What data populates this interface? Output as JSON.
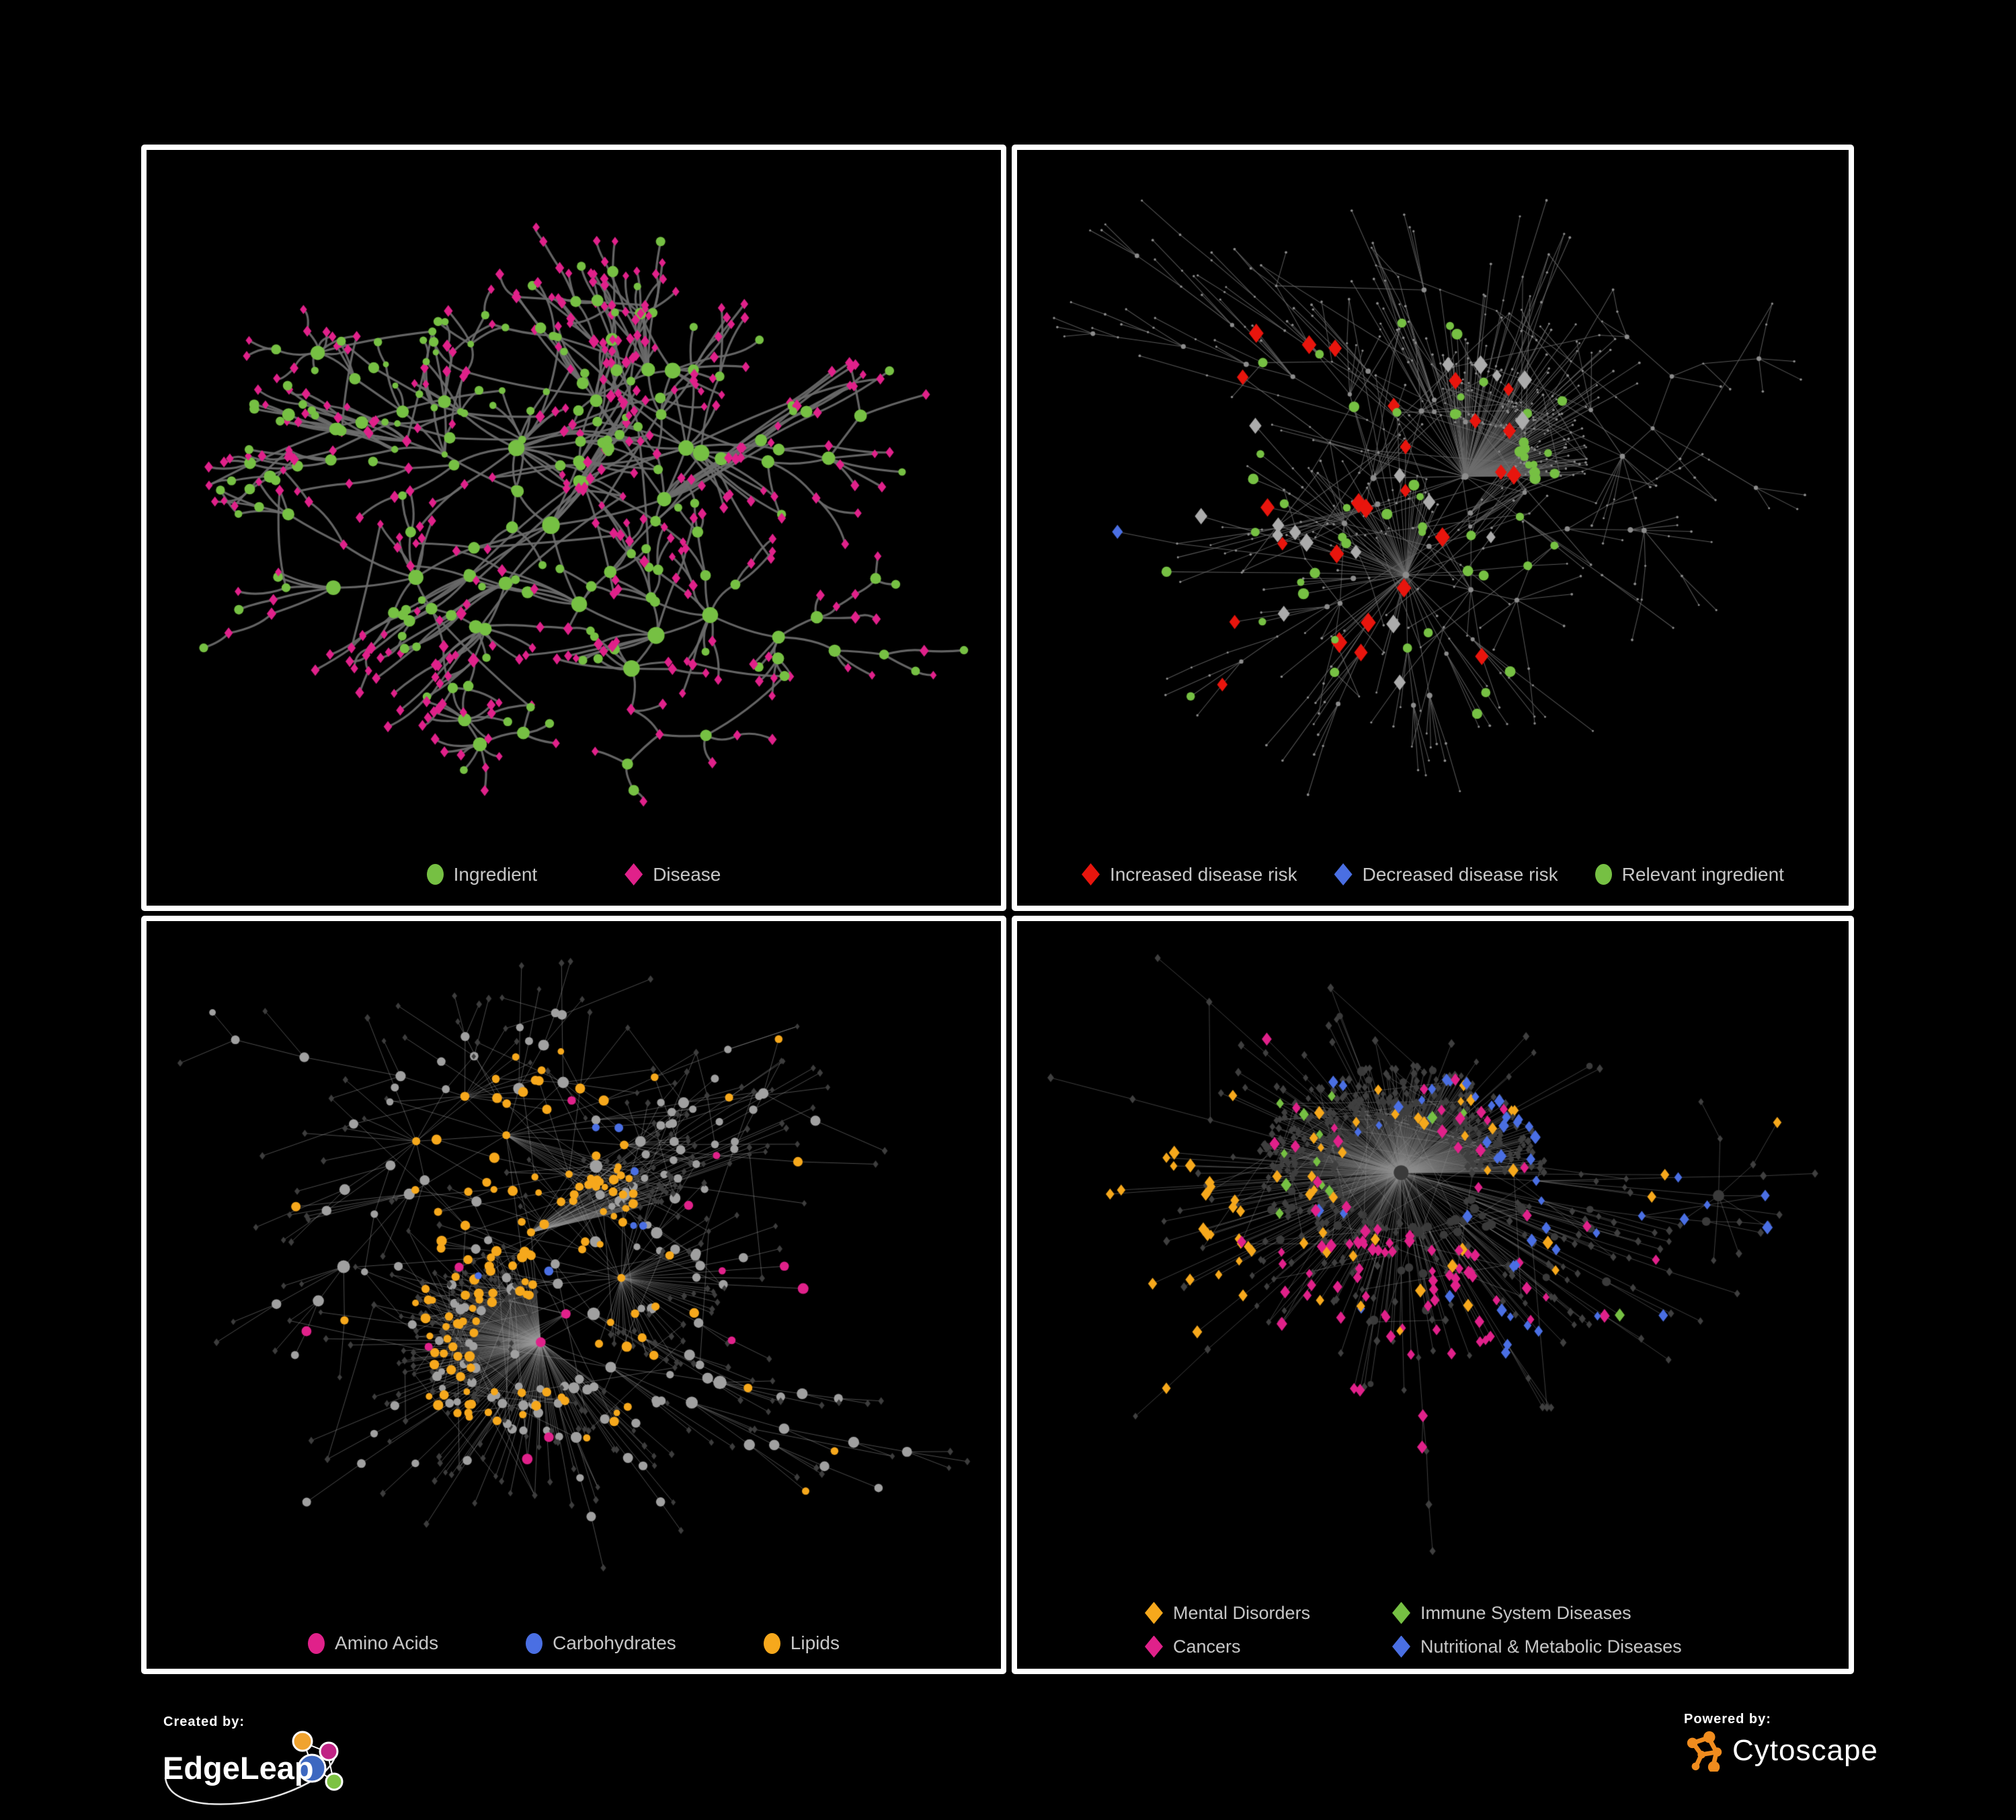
{
  "page": {
    "background": "#000000",
    "panel_border": "#ffffff",
    "legend_text_color": "#c7c7c7"
  },
  "panels": [
    {
      "name": "ingredient-disease-network",
      "legend": [
        {
          "label": "Ingredient",
          "shape": "circle",
          "color": "#76C043"
        },
        {
          "label": "Disease",
          "shape": "diamond",
          "color": "#E0218A"
        }
      ],
      "colors": {
        "edge": "#6C6C6C"
      },
      "render": {
        "seed": 7,
        "nodes": 560,
        "hub_bias": 0.78,
        "pref_power": 1.15,
        "step": 230,
        "decay": 0.85,
        "extra_edges": 45,
        "extra_dist": 230,
        "curved": true,
        "edge_width": 3.2,
        "edge_alpha": 0.92,
        "fit": [
          85,
          115,
          55,
          155
        ],
        "hub_deg": 2,
        "base0_prob": 0.22,
        "hub0_prob": 0.8,
        "base": [
          {
            "shape": "circle",
            "color": "#76C043",
            "r0": 4.2,
            "rk": 2.3,
            "rmax": 16
          },
          {
            "shape": "diamond",
            "color": "#E0218A",
            "r0": 4.6,
            "rk": 1.5,
            "rmax": 11
          }
        ],
        "groups": [
          {
            "shape": "circle",
            "color": "#76C043",
            "prob": 0.5,
            "region": [
              0.27,
              0.2,
              0.48,
              0.42
            ],
            "r": 5.2
          }
        ]
      }
    },
    {
      "name": "disease-risk-network",
      "legend": [
        {
          "label": "Increased disease risk",
          "shape": "diamond",
          "color": "#E8150D"
        },
        {
          "label": "Decreased disease risk",
          "shape": "diamond",
          "color": "#4A6FE3"
        },
        {
          "label": "Relevant ingredient",
          "shape": "circle",
          "color": "#76C043"
        }
      ],
      "colors": {
        "edge": "#6E6E6E"
      },
      "render": {
        "seed": 13,
        "nodes": 640,
        "hub_bias": 0.8,
        "pref_power": 1.35,
        "step": 230,
        "decay": 0.85,
        "extra_edges": 70,
        "extra_dist": 290,
        "curved": false,
        "edge_width": 1.05,
        "edge_alpha": 0.8,
        "fit": [
          55,
          75,
          65,
          165
        ],
        "hub_deg": 3,
        "base0_prob": 0,
        "hub0_prob": 1,
        "base": [
          {
            "shape": "circle",
            "color": "#8C8C8C",
            "r0": 2.4,
            "rk": 0.55,
            "rmax": 5
          },
          {
            "shape": "circle",
            "color": "#8C8C8C",
            "r0": 1.7,
            "rk": 0,
            "rmax": 3
          }
        ],
        "groups": [
          {
            "shape": "diamond",
            "color": "#E8150D",
            "prob": 0.1,
            "region": [
              0.07,
              0.24,
              0.6,
              0.73
            ],
            "r": 10
          },
          {
            "shape": "diamond",
            "color": "#4A6FE3",
            "prob": 0.3,
            "region": [
              0.06,
              0.3,
              0.17,
              0.63
            ],
            "r": 9
          },
          {
            "shape": "diamond",
            "color": "#4A6FE3",
            "prob": 0.75,
            "region": [
              0.83,
              0.2,
              0.9,
              0.28
            ],
            "r": 9
          },
          {
            "shape": "diamond",
            "color": "#ABABAB",
            "prob": 0.05,
            "region": [
              0.07,
              0.25,
              0.62,
              0.75
            ],
            "r": 9
          },
          {
            "shape": "circle",
            "color": "#76C043",
            "prob": 0.13,
            "region": [
              0.08,
              0.22,
              0.66,
              0.75
            ],
            "r": 6.5
          }
        ]
      }
    },
    {
      "name": "nutrient-class-network",
      "legend": [
        {
          "label": "Amino Acids",
          "shape": "circle",
          "color": "#E0218A"
        },
        {
          "label": "Carbohydrates",
          "shape": "circle",
          "color": "#4A6FE3"
        },
        {
          "label": "Lipids",
          "shape": "circle",
          "color": "#F6A81C"
        }
      ],
      "colors": {
        "edge": "#9A9A9A"
      },
      "render": {
        "seed": 21,
        "nodes": 700,
        "hub_bias": 0.8,
        "pref_power": 1.6,
        "step": 230,
        "decay": 0.85,
        "extra_edges": 90,
        "extra_dist": 280,
        "curved": false,
        "edge_width": 1.0,
        "edge_alpha": 0.5,
        "fit": [
          50,
          60,
          50,
          150
        ],
        "hub_deg": 1,
        "base0_prob": 0.03,
        "hub0_prob": 1,
        "base": [
          {
            "shape": "circle",
            "color": "#A0A0A0",
            "r0": 3.6,
            "rk": 2.1,
            "rmax": 13
          },
          {
            "shape": "diamond",
            "color": "#3D3D3D",
            "r0": 4.2,
            "rk": 0,
            "rmax": 4.6
          }
        ],
        "groups": [
          {
            "shape": "circle",
            "color": "#F6A81C",
            "prob": 0.5,
            "region": [
              0.33,
              0.17,
              0.57,
              0.44
            ],
            "r": 6
          },
          {
            "shape": "circle",
            "color": "#F6A81C",
            "prob": 0.3,
            "region": [
              0.3,
              0.44,
              0.6,
              0.68
            ],
            "r": 6
          },
          {
            "shape": "circle",
            "color": "#F6A81C",
            "prob": 0.035,
            "region": [
              0.03,
              0.03,
              0.97,
              0.97
            ],
            "r": 6
          },
          {
            "shape": "circle",
            "color": "#4A6FE3",
            "prob": 0.09,
            "region": [
              0.36,
              0.18,
              0.62,
              0.5
            ],
            "r": 6
          },
          {
            "shape": "circle",
            "color": "#E0218A",
            "prob": 0.032,
            "region": [
              0.02,
              0.02,
              0.98,
              0.98
            ],
            "r": 6.5
          }
        ]
      }
    },
    {
      "name": "disease-category-network",
      "legend": [
        {
          "label": "Mental Disorders",
          "shape": "diamond",
          "color": "#F6A81C"
        },
        {
          "label": "Immune System Diseases",
          "shape": "diamond",
          "color": "#76C043"
        },
        {
          "label": "Cancers",
          "shape": "diamond",
          "color": "#E0218A"
        },
        {
          "label": "Nutritional & Metabolic Diseases",
          "shape": "diamond",
          "color": "#4A6FE3"
        }
      ],
      "colors": {
        "edge": "#8F8F8F"
      },
      "render": {
        "seed": 29,
        "nodes": 760,
        "hub_bias": 0.8,
        "pref_power": 1.6,
        "step": 230,
        "decay": 0.85,
        "extra_edges": 90,
        "extra_dist": 280,
        "curved": false,
        "edge_width": 1.0,
        "edge_alpha": 0.45,
        "fit": [
          50,
          55,
          50,
          175
        ],
        "hub_deg": 2,
        "base0_prob": 0.04,
        "hub0_prob": 1,
        "base": [
          {
            "shape": "circle",
            "color": "#3A3A3A",
            "r0": 3.2,
            "rk": 1.7,
            "rmax": 11
          },
          {
            "shape": "diamond",
            "color": "#3F3F3F",
            "r0": 4.8,
            "rk": 0,
            "rmax": 5.4
          }
        ],
        "groups": [
          {
            "shape": "diamond",
            "color": "#F6A81C",
            "prob": 0.6,
            "region": [
              0.03,
              0.26,
              0.29,
              0.72
            ],
            "r": 6.5
          },
          {
            "shape": "diamond",
            "color": "#F6A81C",
            "prob": 0.05,
            "region": [
              0,
              0,
              1,
              1
            ],
            "r": 6.5
          },
          {
            "shape": "diamond",
            "color": "#E0218A",
            "prob": 0.45,
            "region": [
              0.31,
              0.42,
              0.57,
              0.78
            ],
            "r": 6.5
          },
          {
            "shape": "diamond",
            "color": "#E0218A",
            "prob": 0.07,
            "region": [
              0.25,
              0.12,
              0.78,
              0.9
            ],
            "r": 6.5
          },
          {
            "shape": "diamond",
            "color": "#4A6FE3",
            "prob": 0.42,
            "region": [
              0.58,
              0.52,
              0.82,
              0.85
            ],
            "r": 6.5
          },
          {
            "shape": "diamond",
            "color": "#4A6FE3",
            "prob": 0.13,
            "region": [
              0.55,
              0.02,
              0.99,
              0.45
            ],
            "r": 6.5
          },
          {
            "shape": "diamond",
            "color": "#4A6FE3",
            "prob": 0.05,
            "region": [
              0,
              0,
              1,
              1
            ],
            "r": 6.5
          },
          {
            "shape": "diamond",
            "color": "#76C043",
            "prob": 0.022,
            "region": [
              0.08,
              0.08,
              0.92,
              0.92
            ],
            "r": 6.5
          }
        ]
      }
    }
  ],
  "footer": {
    "created_by": {
      "label": "Created by:",
      "brand": "EdgeLeap"
    },
    "powered_by": {
      "label": "Powered by:",
      "brand": "Cytoscape"
    },
    "edgeleap_colors": {
      "orange": "#F0A32F",
      "magenta": "#C02485",
      "blue": "#3E68C0",
      "green": "#7DC242"
    },
    "cytoscape_color": "#F08C1E"
  }
}
